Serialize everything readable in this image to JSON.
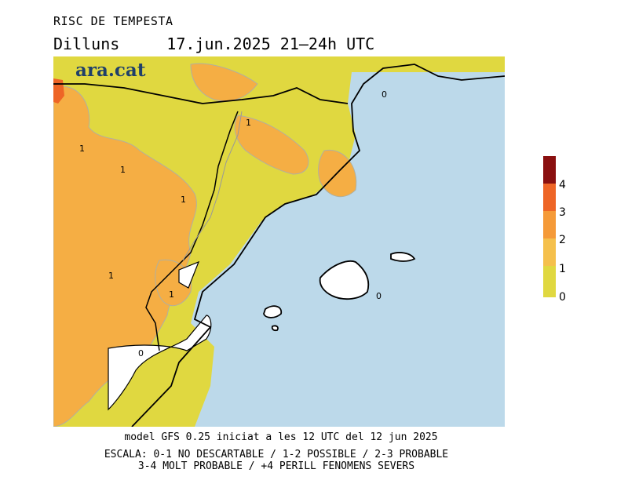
{
  "header": {
    "title": "RISC DE TEMPESTA",
    "day": "Dilluns",
    "datetime": "17.jun.2025 21–24h UTC"
  },
  "brand": {
    "logo_text": "ara.cat"
  },
  "legend": {
    "items": [
      {
        "label": "0",
        "color": "#e0d840"
      },
      {
        "label": "1",
        "color": "#f5c04c"
      },
      {
        "label": "2",
        "color": "#f59a38"
      },
      {
        "label": "3",
        "color": "#ee6526"
      },
      {
        "label": "4",
        "color": "#a01818"
      }
    ],
    "top_color": "#8a1010"
  },
  "map": {
    "contour_labels": [
      "1",
      "1",
      "1",
      "1",
      "1",
      "1",
      "0",
      "0",
      "0"
    ],
    "colors": {
      "sea": "#bcd9ea",
      "level_0_1": "#e0d840",
      "level_1_2": "#f5ae44",
      "level_3_4": "#ee6526",
      "low": "#ffffff"
    }
  },
  "footer": {
    "model_line": "model GFS 0.25 iniciat a les 12 UTC del 12 jun 2025",
    "scale_line1": "ESCALA: 0-1 NO DESCARTABLE / 1-2 POSSIBLE / 2-3 PROBABLE",
    "scale_line2": "3-4 MOLT PROBABLE / +4 PERILL FENOMENS SEVERS"
  }
}
